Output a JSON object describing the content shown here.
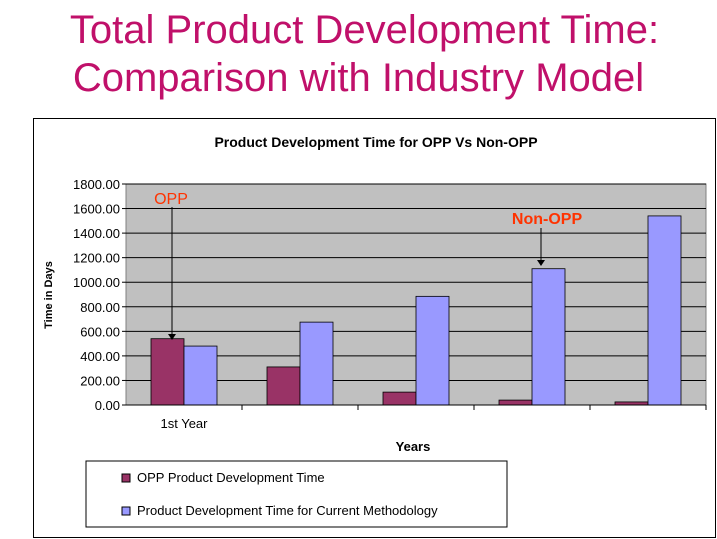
{
  "slide": {
    "title_line1": "Total Product Development Time:",
    "title_line2": "Comparison with Industry Model"
  },
  "chart_data": {
    "type": "bar",
    "title": "Product Development Time for OPP Vs Non-OPP",
    "xlabel": "Years",
    "ylabel": "Time in Days",
    "categories": [
      "1st Year",
      "",
      "",
      "",
      ""
    ],
    "ylim": [
      0,
      1800
    ],
    "yticks": [
      "0.00",
      "200.00",
      "400.00",
      "600.00",
      "800.00",
      "1000.00",
      "1200.00",
      "1400.00",
      "1600.00",
      "1800.00"
    ],
    "grid": true,
    "series": [
      {
        "name": "OPP Product Development Time",
        "color": "#993366",
        "values": [
          540,
          310,
          105,
          40,
          25
        ]
      },
      {
        "name": "Product Development Time for Current Methodology",
        "color": "#9999ff",
        "values": [
          480,
          675,
          885,
          1110,
          1540
        ]
      }
    ],
    "annotations": [
      {
        "text": "OPP",
        "color": "#ff3300"
      },
      {
        "text": "Non-OPP",
        "color": "#ff3300"
      }
    ],
    "legend_position": "bottom"
  }
}
